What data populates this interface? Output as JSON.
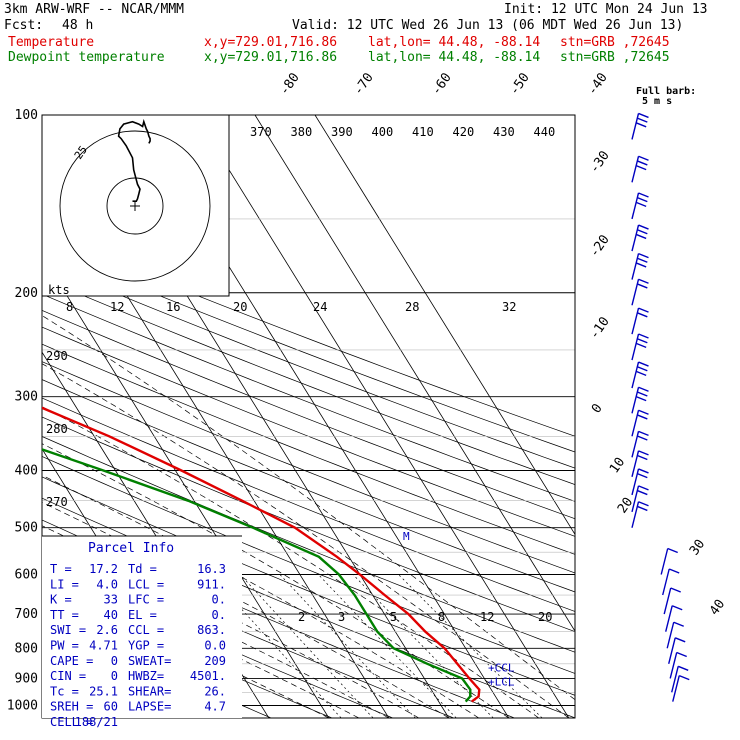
{
  "header": {
    "model": "3km ARW-WRF -- NCAR/MMM",
    "init": "Init: 12 UTC Mon 24 Jun 13",
    "fcst_label": "Fcst:",
    "fcst_value": "48 h",
    "valid": "Valid: 12 UTC Wed 26 Jun 13 (06 MDT Wed 26 Jun 13)",
    "temp_label": "Temperature",
    "dew_label": "Dewpoint temperature",
    "xy": "x,y=729.01,716.86",
    "latlon": "lat,lon= 44.48, -88.14",
    "stn": "stn=GRB ,72645"
  },
  "barb_legend": {
    "line1": "Full barb:",
    "line2": "5 m s"
  },
  "parcel_info": {
    "title": "Parcel Info",
    "rows": [
      [
        "T  =",
        "17.2",
        "Td =",
        "16.3"
      ],
      [
        "LI =",
        "4.0",
        "LCL =",
        "911."
      ],
      [
        "K  =",
        "33",
        "LFC =",
        "0."
      ],
      [
        "TT =",
        "40",
        "EL  =",
        "0."
      ],
      [
        "SWI =",
        "2.6",
        "CCL =",
        "863."
      ],
      [
        "PW =",
        "4.71",
        "YGP =",
        "0.0"
      ],
      [
        "CAPE =",
        "0",
        "SWEAT=",
        "209"
      ],
      [
        "CIN =",
        "0",
        "HWBZ=",
        "4501."
      ],
      [
        "Tc =",
        "25.1",
        "SHEAR=",
        "26."
      ],
      [
        "SREH =",
        "60",
        "LAPSE=",
        "4.7"
      ],
      [
        "CELL =",
        "188/21",
        "",
        ""
      ]
    ]
  },
  "level_markers": [
    "CCL",
    "LCL"
  ],
  "hodograph": {
    "unit_label": "kts",
    "ring_label": "25"
  },
  "colors": {
    "temperature": "#e00000",
    "dewpoint": "#008000",
    "barbs": "#0000c0"
  },
  "chart_data": {
    "type": "line",
    "title": "",
    "ylabel": "",
    "y_scale": "log-pressure",
    "pressure_levels": [
      100,
      200,
      300,
      400,
      500,
      600,
      700,
      800,
      900,
      1000
    ],
    "isotherm_labels": [
      "-80",
      "-70",
      "-60",
      "-50",
      "-40",
      "-30",
      "-20",
      "-10",
      "0",
      "10",
      "20",
      "30",
      "40"
    ],
    "theta_e_labels": [
      "370",
      "380",
      "390",
      "400",
      "410",
      "420",
      "430",
      "440"
    ],
    "mixing_ratio_top_labels": [
      "8",
      "12",
      "16",
      "20",
      "24",
      "28",
      "32"
    ],
    "mixing_ratio_bottom_labels": [
      "2",
      "3",
      "5",
      "8",
      "12",
      "20"
    ],
    "dry_adiabat_labels": [
      "290",
      "280",
      "270"
    ],
    "series": [
      {
        "name": "Temperature",
        "pressure": [
          100,
          120,
          150,
          170,
          185,
          200,
          230,
          260,
          300,
          350,
          400,
          450,
          500,
          560,
          600,
          650,
          700,
          750,
          800,
          850,
          900,
          940,
          965,
          985
        ],
        "temperature": [
          -60,
          -57.5,
          -54,
          -51.5,
          -51,
          -50.5,
          -46,
          -39,
          -29,
          -17.5,
          -9,
          -2,
          4,
          8,
          10,
          12,
          14,
          15,
          16.5,
          17,
          17.5,
          18,
          17.2,
          15.5
        ]
      },
      {
        "name": "Dewpoint temperature",
        "pressure": [
          100,
          120,
          135,
          150,
          170,
          185,
          200,
          230,
          260,
          300,
          350,
          400,
          450,
          500,
          560,
          600,
          650,
          700,
          750,
          800,
          850,
          900,
          940,
          965,
          985
        ],
        "temperature": [
          -78,
          -82,
          -84.5,
          -82,
          -80,
          -82,
          -81,
          -76,
          -66,
          -52,
          -35,
          -22,
          -11,
          -3,
          5,
          6.5,
          7,
          7,
          7,
          8,
          12,
          16.3,
          16.5,
          15.8,
          14.5
        ]
      }
    ],
    "hodograph_trace": [
      [
        -2,
        2
      ],
      [
        1,
        2
      ],
      [
        2,
        3
      ],
      [
        3,
        5
      ],
      [
        4,
        7
      ],
      [
        2,
        9
      ],
      [
        -1,
        15
      ],
      [
        -2,
        20
      ],
      [
        -7,
        25
      ],
      [
        -11,
        28
      ],
      [
        -13,
        29
      ],
      [
        -12,
        32
      ],
      [
        -9,
        34
      ],
      [
        -2,
        35
      ],
      [
        3,
        34
      ],
      [
        6,
        33
      ],
      [
        7,
        35
      ],
      [
        9,
        32
      ],
      [
        10,
        31
      ],
      [
        11,
        29
      ],
      [
        12,
        28
      ],
      [
        12,
        27
      ],
      [
        11,
        26
      ]
    ],
    "wind_barbs": [
      {
        "p": 110,
        "u": 9,
        "v": 9
      },
      {
        "p": 130,
        "u": 12,
        "v": 6
      },
      {
        "p": 150,
        "u": 13,
        "v": 5
      },
      {
        "p": 170,
        "u": 13,
        "v": 3
      },
      {
        "p": 190,
        "u": 13,
        "v": 3
      },
      {
        "p": 210,
        "u": 12,
        "v": 2
      },
      {
        "p": 235,
        "u": 12,
        "v": 1
      },
      {
        "p": 260,
        "u": 13,
        "v": 1
      },
      {
        "p": 290,
        "u": 14,
        "v": 0
      },
      {
        "p": 320,
        "u": 13,
        "v": 0
      },
      {
        "p": 350,
        "u": 12,
        "v": 0
      },
      {
        "p": 380,
        "u": 12,
        "v": 0
      },
      {
        "p": 410,
        "u": 12,
        "v": 0
      },
      {
        "p": 440,
        "u": 11,
        "v": 0
      },
      {
        "p": 470,
        "u": 11,
        "v": 1
      },
      {
        "p": 500,
        "u": 10,
        "v": 1
      },
      {
        "p": 600,
        "u": 6,
        "v": 2
      },
      {
        "p": 650,
        "u": 5,
        "v": 2
      },
      {
        "p": 700,
        "u": 5,
        "v": 3
      },
      {
        "p": 750,
        "u": 4,
        "v": 3
      },
      {
        "p": 800,
        "u": 3,
        "v": 3
      },
      {
        "p": 850,
        "u": 2,
        "v": 4
      },
      {
        "p": 900,
        "u": 2,
        "v": 4
      },
      {
        "p": 950,
        "u": 2,
        "v": 3
      },
      {
        "p": 985,
        "u": 1,
        "v": 2
      }
    ]
  }
}
